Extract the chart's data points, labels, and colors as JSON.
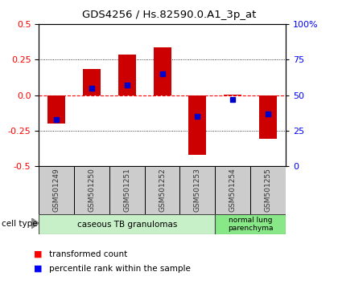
{
  "title": "GDS4256 / Hs.82590.0.A1_3p_at",
  "samples": [
    "GSM501249",
    "GSM501250",
    "GSM501251",
    "GSM501252",
    "GSM501253",
    "GSM501254",
    "GSM501255"
  ],
  "transformed_counts": [
    -0.2,
    0.185,
    0.285,
    0.335,
    -0.42,
    0.005,
    -0.31
  ],
  "percentile_ranks": [
    33,
    55,
    57,
    65,
    35,
    47,
    37
  ],
  "ylim": [
    -0.5,
    0.5
  ],
  "yticks_left": [
    -0.5,
    -0.25,
    0.0,
    0.25,
    0.5
  ],
  "yticks_right": [
    0,
    25,
    50,
    75,
    100
  ],
  "bar_color": "#cc0000",
  "marker_color": "#0000cc",
  "group1_label": "caseous TB granulomas",
  "group1_indices": [
    0,
    1,
    2,
    3,
    4
  ],
  "group1_color": "#c8f0c8",
  "group2_label": "normal lung\nparenchyma",
  "group2_indices": [
    5,
    6
  ],
  "group2_color": "#88e888",
  "cell_type_label": "cell type",
  "legend_red": "transformed count",
  "legend_blue": "percentile rank within the sample",
  "tick_box_color": "#cccccc",
  "bar_width": 0.5
}
